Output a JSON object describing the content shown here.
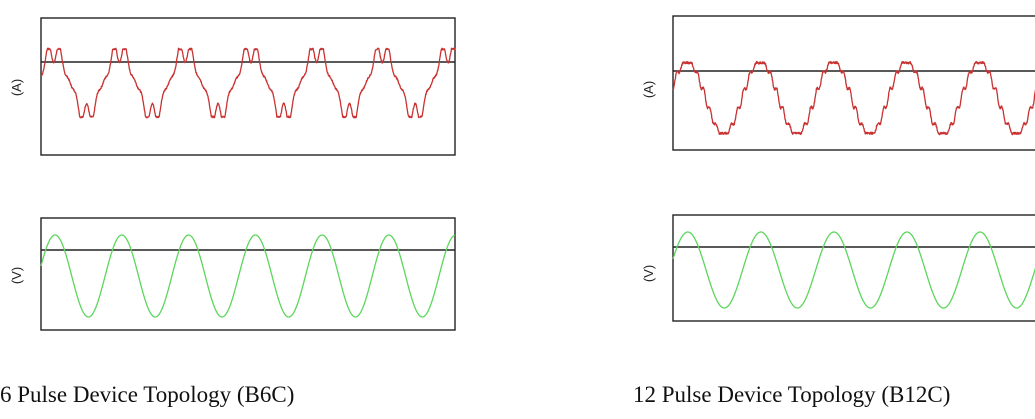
{
  "colors": {
    "current_wave": "#c83232",
    "voltage_wave": "#5cd65c"
  },
  "chart_data": [
    {
      "type": "line",
      "title": "6 Pulse Device Topology (B6C)",
      "panels": [
        {
          "ylabel": "(A)",
          "series": [
            {
              "kind": "6-pulse current",
              "cycles": 6.3,
              "ripple_peaks": 2,
              "color": "#c83232"
            }
          ]
        },
        {
          "ylabel": "(V)",
          "series": [
            {
              "kind": "sine voltage",
              "cycles": 6.2,
              "color": "#5cd65c"
            }
          ]
        }
      ],
      "grid": false,
      "legend": "none"
    },
    {
      "type": "line",
      "title": "12 Pulse Device Topology (B12C)",
      "panels": [
        {
          "ylabel": "(A)",
          "series": [
            {
              "kind": "12-pulse current",
              "cycles": 5.2,
              "color": "#c83232"
            }
          ]
        },
        {
          "ylabel": "(V)",
          "series": [
            {
              "kind": "sine voltage",
              "cycles": 5.2,
              "color": "#5cd65c"
            }
          ]
        }
      ],
      "grid": false,
      "legend": "none"
    }
  ],
  "captions": {
    "left": "6 Pulse Device Topology (B6C)",
    "right": "12 Pulse Device Topology (B12C)"
  }
}
